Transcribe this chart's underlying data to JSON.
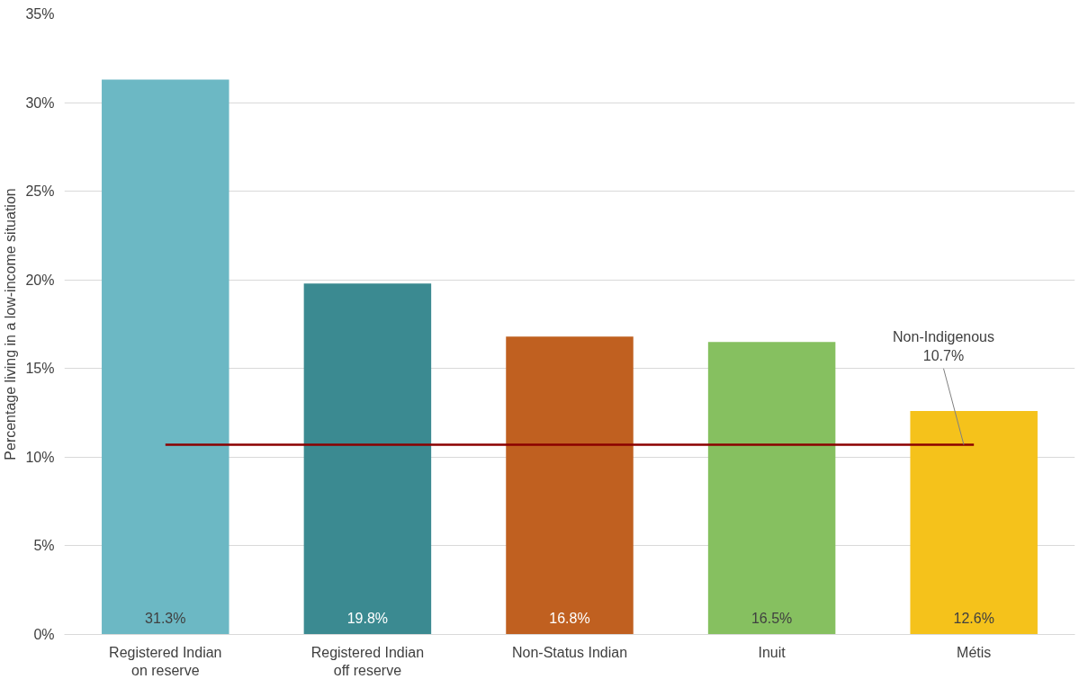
{
  "chart_data": {
    "type": "bar",
    "ylabel": "Percentage living in a low-income situation",
    "categories": [
      "Registered Indian\non reserve",
      "Registered Indian\noff reserve",
      "Non-Status Indian",
      "Inuit",
      "Métis"
    ],
    "values": [
      31.3,
      19.8,
      16.8,
      16.5,
      12.6
    ],
    "colors": [
      "#6cb8c4",
      "#3b8a91",
      "#c06020",
      "#86c060",
      "#f5c21b"
    ],
    "value_labels": [
      "31.3%",
      "19.8%",
      "16.8%",
      "16.5%",
      "12.6%"
    ],
    "ylim": [
      0,
      35
    ],
    "yticks": [
      {
        "value": 0,
        "label": "0%"
      },
      {
        "value": 5,
        "label": "5%"
      },
      {
        "value": 10,
        "label": "10%"
      },
      {
        "value": 15,
        "label": "15%"
      },
      {
        "value": 20,
        "label": "20%"
      },
      {
        "value": 25,
        "label": "25%"
      },
      {
        "value": 30,
        "label": "30%"
      },
      {
        "value": 35,
        "label": "35%"
      }
    ],
    "grid": "y",
    "ref_lines": [
      {
        "axis": "y",
        "value": 10.7,
        "label": "Non-Indigenous\n10.7%",
        "color": "#8b0000"
      }
    ]
  }
}
